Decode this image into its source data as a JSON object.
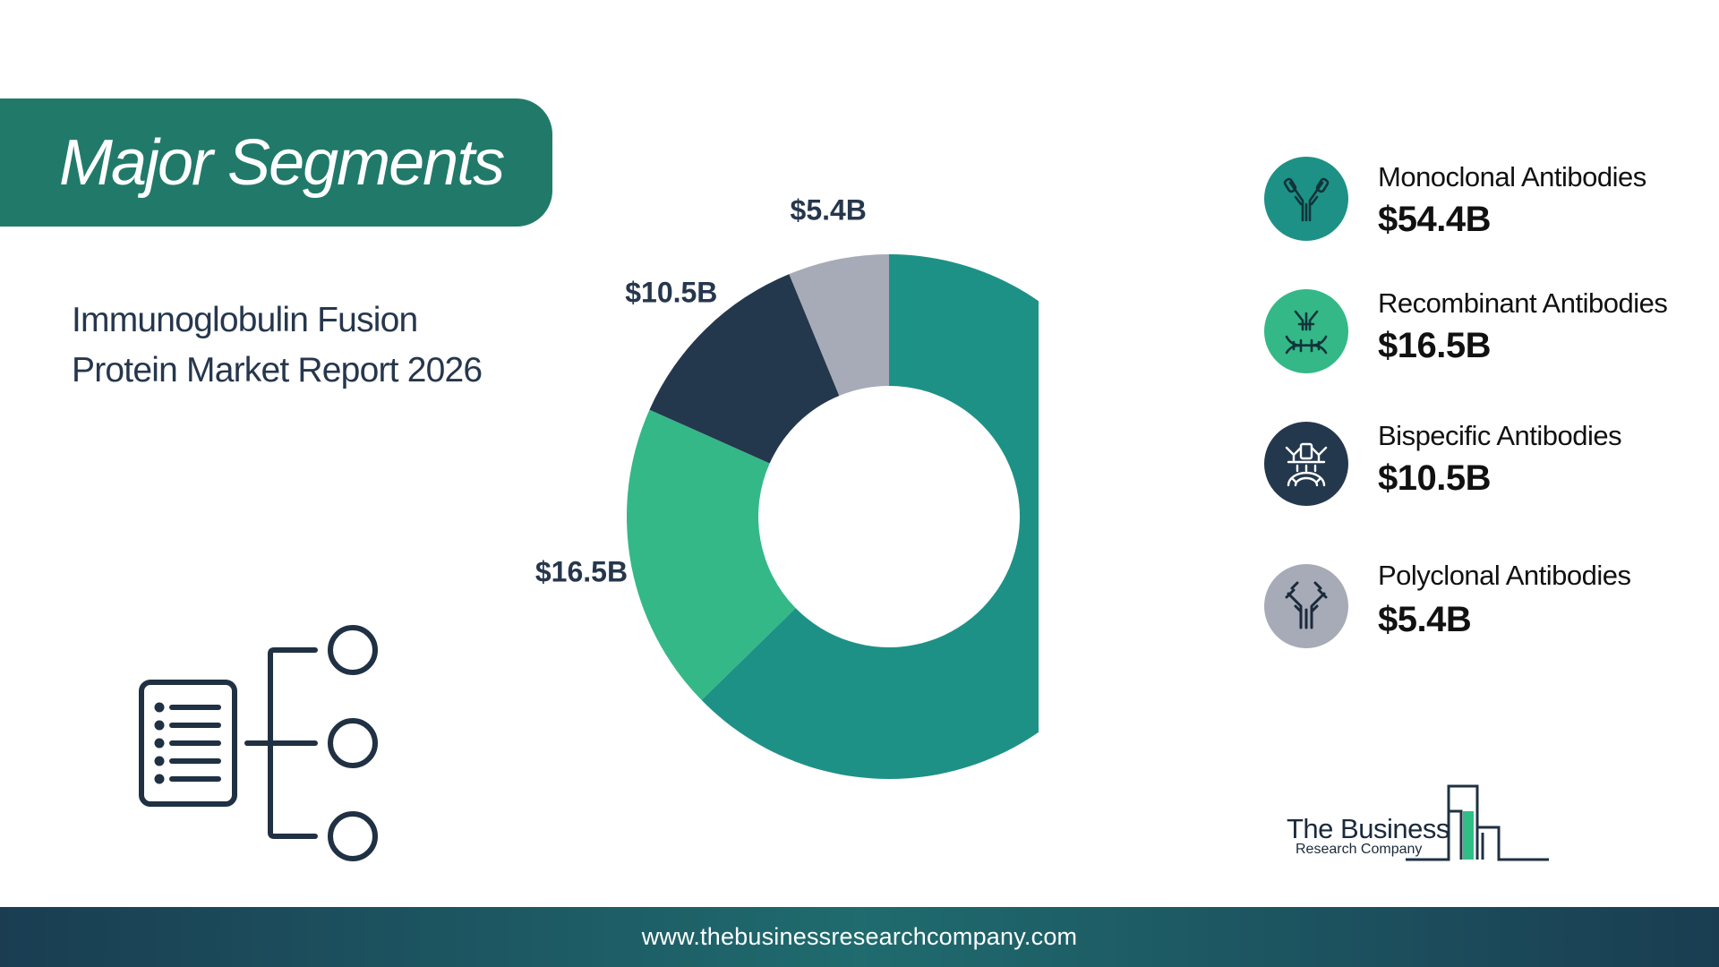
{
  "header": {
    "title": "Major Segments"
  },
  "report": {
    "subtitle_line1": "Immunoglobulin Fusion",
    "subtitle_line2": "Protein Market Report 2026"
  },
  "chart_data": {
    "type": "pie",
    "donut": true,
    "categories": [
      "Monoclonal Antibodies",
      "Recombinant Antibodies",
      "Bispecific Antibodies",
      "Polyclonal Antibodies"
    ],
    "values": [
      54.4,
      16.5,
      10.5,
      5.4
    ],
    "labels": [
      "$54.4B",
      "$16.5B",
      "$10.5B",
      "$5.4B"
    ],
    "colors": [
      "#1e9186",
      "#34b888",
      "#24384d",
      "#a7abb7"
    ],
    "legend_position": "right"
  },
  "legend": {
    "items": [
      {
        "name": "Monoclonal Antibodies",
        "value": "$54.4B",
        "icon": "antibody-icon",
        "color": "#1e9186"
      },
      {
        "name": "Recombinant Antibodies",
        "value": "$16.5B",
        "icon": "recombinant-dna-icon",
        "color": "#34b888"
      },
      {
        "name": "Bispecific Antibodies",
        "value": "$10.5B",
        "icon": "bispecific-antibody-icon",
        "color": "#24384d"
      },
      {
        "name": "Polyclonal Antibodies",
        "value": "$5.4B",
        "icon": "polyclonal-antibody-icon",
        "color": "#a7abb7"
      }
    ]
  },
  "logo": {
    "main": "The Business",
    "sub": "Research Company"
  },
  "footer": {
    "url": "www.thebusinessresearchcompany.com"
  },
  "icons": {
    "segments": "hierarchy-list-icon"
  }
}
